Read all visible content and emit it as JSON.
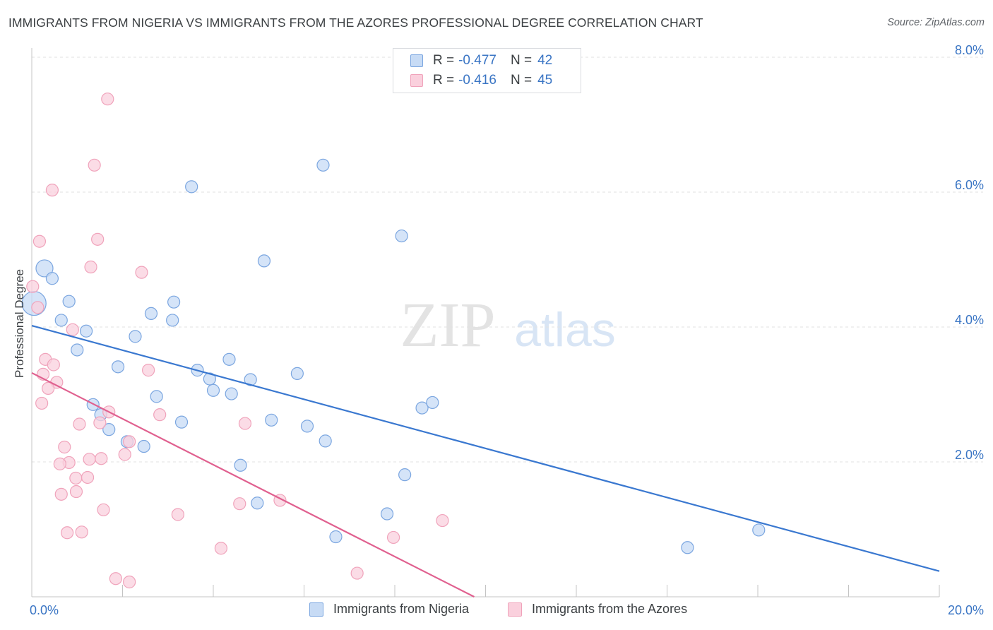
{
  "title": "IMMIGRANTS FROM NIGERIA VS IMMIGRANTS FROM THE AZORES PROFESSIONAL DEGREE CORRELATION CHART",
  "source": "Source: ZipAtlas.com",
  "watermark": {
    "zip": "ZIP",
    "atlas": "atlas"
  },
  "legend_top": [
    {
      "r_label": "R =",
      "r_value": "-0.477",
      "n_label": "N =",
      "n_value": "42"
    },
    {
      "r_label": "R =",
      "r_value": "-0.416",
      "n_label": "N =",
      "n_value": "45"
    }
  ],
  "chart_data": {
    "type": "scatter",
    "title": "IMMIGRANTS FROM NIGERIA VS IMMIGRANTS FROM THE AZORES PROFESSIONAL DEGREE CORRELATION CHART",
    "xlabel": "",
    "ylabel": "Professional Degree",
    "xlim": [
      0,
      20
    ],
    "ylim": [
      0,
      8
    ],
    "x_tick_labels": [
      "0.0%",
      "20.0%"
    ],
    "y_ticks": [
      2,
      4,
      6,
      8
    ],
    "y_tick_labels": [
      "2.0%",
      "4.0%",
      "6.0%",
      "8.0%"
    ],
    "grid": true,
    "legend_position": "top-center",
    "series": [
      {
        "name": "Immigrants from Nigeria",
        "color": "#7ba6e0",
        "fill": "#c7dbf5",
        "trend_color": "#3a78d0",
        "trend": {
          "x": [
            0,
            20
          ],
          "y": [
            4.02,
            0.38
          ]
        },
        "points": [
          {
            "x": 0.05,
            "y": 4.35,
            "s": 3
          },
          {
            "x": 0.28,
            "y": 4.87,
            "s": 2
          },
          {
            "x": 0.45,
            "y": 4.72,
            "s": 1
          },
          {
            "x": 0.82,
            "y": 4.38,
            "s": 1
          },
          {
            "x": 0.65,
            "y": 4.1,
            "s": 1
          },
          {
            "x": 1.2,
            "y": 3.94,
            "s": 1
          },
          {
            "x": 1.0,
            "y": 3.66,
            "s": 1
          },
          {
            "x": 1.9,
            "y": 3.41,
            "s": 1
          },
          {
            "x": 2.28,
            "y": 3.86,
            "s": 1
          },
          {
            "x": 2.63,
            "y": 4.2,
            "s": 1
          },
          {
            "x": 3.1,
            "y": 4.1,
            "s": 1
          },
          {
            "x": 3.13,
            "y": 4.37,
            "s": 1
          },
          {
            "x": 3.52,
            "y": 6.08,
            "s": 1
          },
          {
            "x": 5.12,
            "y": 4.98,
            "s": 1
          },
          {
            "x": 6.42,
            "y": 6.4,
            "s": 1
          },
          {
            "x": 8.15,
            "y": 5.35,
            "s": 1
          },
          {
            "x": 3.65,
            "y": 3.36,
            "s": 1
          },
          {
            "x": 3.92,
            "y": 3.23,
            "s": 1
          },
          {
            "x": 4.35,
            "y": 3.52,
            "s": 1
          },
          {
            "x": 4.0,
            "y": 3.06,
            "s": 1
          },
          {
            "x": 4.4,
            "y": 3.01,
            "s": 1
          },
          {
            "x": 4.82,
            "y": 3.22,
            "s": 1
          },
          {
            "x": 5.85,
            "y": 3.31,
            "s": 1
          },
          {
            "x": 1.35,
            "y": 2.85,
            "s": 1
          },
          {
            "x": 1.52,
            "y": 2.7,
            "s": 1
          },
          {
            "x": 1.7,
            "y": 2.48,
            "s": 1
          },
          {
            "x": 2.1,
            "y": 2.3,
            "s": 1
          },
          {
            "x": 2.47,
            "y": 2.23,
            "s": 1
          },
          {
            "x": 2.75,
            "y": 2.97,
            "s": 1
          },
          {
            "x": 3.3,
            "y": 2.59,
            "s": 1
          },
          {
            "x": 5.28,
            "y": 2.62,
            "s": 1
          },
          {
            "x": 6.07,
            "y": 2.53,
            "s": 1
          },
          {
            "x": 6.47,
            "y": 2.31,
            "s": 1
          },
          {
            "x": 4.6,
            "y": 1.95,
            "s": 1
          },
          {
            "x": 4.97,
            "y": 1.39,
            "s": 1
          },
          {
            "x": 6.7,
            "y": 0.89,
            "s": 1
          },
          {
            "x": 7.83,
            "y": 1.23,
            "s": 1
          },
          {
            "x": 8.22,
            "y": 1.81,
            "s": 1
          },
          {
            "x": 8.6,
            "y": 2.8,
            "s": 1
          },
          {
            "x": 8.83,
            "y": 2.88,
            "s": 1
          },
          {
            "x": 14.45,
            "y": 0.73,
            "s": 1
          },
          {
            "x": 16.02,
            "y": 0.99,
            "s": 1
          }
        ]
      },
      {
        "name": "Immigrants from the Azores",
        "color": "#f0a3bb",
        "fill": "#fad0dd",
        "trend_color": "#e0608f",
        "trend": {
          "x": [
            0,
            9.75
          ],
          "y": [
            3.32,
            0.0
          ]
        },
        "points": [
          {
            "x": 1.67,
            "y": 7.38,
            "s": 1
          },
          {
            "x": 1.38,
            "y": 6.4,
            "s": 1
          },
          {
            "x": 0.45,
            "y": 6.03,
            "s": 1
          },
          {
            "x": 0.17,
            "y": 5.27,
            "s": 1
          },
          {
            "x": 1.45,
            "y": 5.3,
            "s": 1
          },
          {
            "x": 1.3,
            "y": 4.89,
            "s": 1
          },
          {
            "x": 2.42,
            "y": 4.81,
            "s": 1
          },
          {
            "x": 0.02,
            "y": 4.6,
            "s": 1
          },
          {
            "x": 0.13,
            "y": 4.29,
            "s": 1
          },
          {
            "x": 0.9,
            "y": 3.96,
            "s": 1
          },
          {
            "x": 0.3,
            "y": 3.52,
            "s": 1
          },
          {
            "x": 0.48,
            "y": 3.44,
            "s": 1
          },
          {
            "x": 0.25,
            "y": 3.3,
            "s": 1
          },
          {
            "x": 0.55,
            "y": 3.18,
            "s": 1
          },
          {
            "x": 0.36,
            "y": 3.09,
            "s": 1
          },
          {
            "x": 0.22,
            "y": 2.87,
            "s": 1
          },
          {
            "x": 1.7,
            "y": 2.74,
            "s": 1
          },
          {
            "x": 1.5,
            "y": 2.58,
            "s": 1
          },
          {
            "x": 1.05,
            "y": 2.56,
            "s": 1
          },
          {
            "x": 2.57,
            "y": 3.36,
            "s": 1
          },
          {
            "x": 2.82,
            "y": 2.7,
            "s": 1
          },
          {
            "x": 4.7,
            "y": 2.57,
            "s": 1
          },
          {
            "x": 0.72,
            "y": 2.22,
            "s": 1
          },
          {
            "x": 2.15,
            "y": 2.3,
            "s": 1
          },
          {
            "x": 2.05,
            "y": 2.11,
            "s": 1
          },
          {
            "x": 1.27,
            "y": 2.04,
            "s": 1
          },
          {
            "x": 1.53,
            "y": 2.05,
            "s": 1
          },
          {
            "x": 0.82,
            "y": 1.99,
            "s": 1
          },
          {
            "x": 0.62,
            "y": 1.97,
            "s": 1
          },
          {
            "x": 0.97,
            "y": 1.76,
            "s": 1
          },
          {
            "x": 1.23,
            "y": 1.77,
            "s": 1
          },
          {
            "x": 0.65,
            "y": 1.52,
            "s": 1
          },
          {
            "x": 0.98,
            "y": 1.56,
            "s": 1
          },
          {
            "x": 1.58,
            "y": 1.29,
            "s": 1
          },
          {
            "x": 3.22,
            "y": 1.22,
            "s": 1
          },
          {
            "x": 4.58,
            "y": 1.38,
            "s": 1
          },
          {
            "x": 5.47,
            "y": 1.43,
            "s": 1
          },
          {
            "x": 9.05,
            "y": 1.13,
            "s": 1
          },
          {
            "x": 0.78,
            "y": 0.95,
            "s": 1
          },
          {
            "x": 1.1,
            "y": 0.96,
            "s": 1
          },
          {
            "x": 4.17,
            "y": 0.72,
            "s": 1
          },
          {
            "x": 7.97,
            "y": 0.88,
            "s": 1
          },
          {
            "x": 1.85,
            "y": 0.27,
            "s": 1
          },
          {
            "x": 2.15,
            "y": 0.22,
            "s": 1
          },
          {
            "x": 7.17,
            "y": 0.35,
            "s": 1
          }
        ]
      }
    ]
  }
}
